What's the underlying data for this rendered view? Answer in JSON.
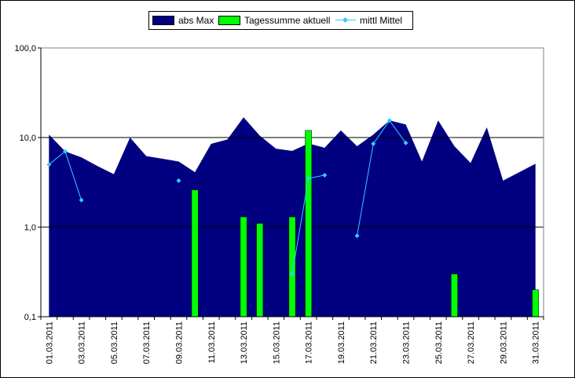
{
  "chart_data": {
    "type": "area",
    "title": "",
    "xlabel": "",
    "ylabel": "",
    "yscale": "log",
    "ylim": [
      0.1,
      100
    ],
    "y_ticks": [
      {
        "value": 0.1,
        "label": "0,1"
      },
      {
        "value": 1,
        "label": "1,0"
      },
      {
        "value": 10,
        "label": "10,0"
      },
      {
        "value": 100,
        "label": "100,0"
      }
    ],
    "gridlines_at": [
      1,
      10
    ],
    "legend_position": "top-center",
    "categories": [
      "01.03.2011",
      "02.03.2011",
      "03.03.2011",
      "04.03.2011",
      "05.03.2011",
      "06.03.2011",
      "07.03.2011",
      "08.03.2011",
      "09.03.2011",
      "10.03.2011",
      "11.03.2011",
      "12.03.2011",
      "13.03.2011",
      "14.03.2011",
      "15.03.2011",
      "16.03.2011",
      "17.03.2011",
      "18.03.2011",
      "19.03.2011",
      "20.03.2011",
      "21.03.2011",
      "22.03.2011",
      "23.03.2011",
      "24.03.2011",
      "25.03.2011",
      "26.03.2011",
      "27.03.2011",
      "28.03.2011",
      "29.03.2011",
      "30.03.2011",
      "31.03.2011"
    ],
    "x_tick_labels": [
      "01.03.2011",
      "03.03.2011",
      "05.03.2011",
      "07.03.2011",
      "09.03.2011",
      "11.03.2011",
      "13.03.2011",
      "15.03.2011",
      "17.03.2011",
      "19.03.2011",
      "21.03.2011",
      "23.03.2011",
      "25.03.2011",
      "27.03.2011",
      "29.03.2011",
      "31.03.2011"
    ],
    "series": [
      {
        "name": "abs Max",
        "kind": "area",
        "color": "#000080",
        "values": [
          10.8,
          7.0,
          6.0,
          4.8,
          3.9,
          10.0,
          6.2,
          5.8,
          5.4,
          4.1,
          8.5,
          9.5,
          16.8,
          10.5,
          7.5,
          7.1,
          8.6,
          7.7,
          12.0,
          8.0,
          10.8,
          15.5,
          14.0,
          5.4,
          15.5,
          8.0,
          5.2,
          13.0,
          3.3,
          4.1,
          5.1
        ]
      },
      {
        "name": "Tagessumme aktuell",
        "kind": "bar",
        "color": "#00ff00",
        "values": [
          null,
          null,
          null,
          null,
          null,
          null,
          null,
          null,
          null,
          2.6,
          null,
          null,
          1.3,
          1.1,
          null,
          1.3,
          12.0,
          null,
          null,
          null,
          null,
          null,
          null,
          null,
          null,
          0.3,
          null,
          null,
          null,
          null,
          0.2
        ]
      },
      {
        "name": "mittl Mittel",
        "kind": "line",
        "color": "#33ccff",
        "values": [
          5.0,
          7.0,
          2.0,
          null,
          null,
          null,
          null,
          null,
          3.3,
          null,
          null,
          null,
          null,
          null,
          null,
          0.3,
          3.5,
          3.8,
          null,
          0.8,
          8.5,
          15.5,
          8.7,
          null,
          null,
          null,
          null,
          null,
          null,
          null,
          null
        ]
      }
    ]
  }
}
